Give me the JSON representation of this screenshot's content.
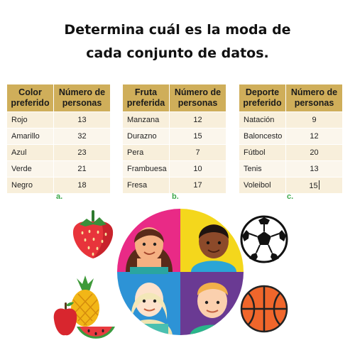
{
  "title": {
    "line1": "Determina cuál es la moda de",
    "line2": "cada conjunto de datos."
  },
  "tables": [
    {
      "letter": "a.",
      "header": [
        "Color preferido",
        "Número de personas"
      ],
      "rows": [
        [
          "Rojo",
          "13"
        ],
        [
          "Amarillo",
          "32"
        ],
        [
          "Azul",
          "23"
        ],
        [
          "Verde",
          "21"
        ],
        [
          "Negro",
          "18"
        ]
      ]
    },
    {
      "letter": "b.",
      "header": [
        "Fruta preferida",
        "Número de personas"
      ],
      "rows": [
        [
          "Manzana",
          "12"
        ],
        [
          "Durazno",
          "15"
        ],
        [
          "Pera",
          "7"
        ],
        [
          "Frambuesa",
          "10"
        ],
        [
          "Fresa",
          "17"
        ]
      ]
    },
    {
      "letter": "c.",
      "header": [
        "Deporte preferido",
        "Número de personas"
      ],
      "rows": [
        [
          "Natación",
          "9"
        ],
        [
          "Baloncesto",
          "12"
        ],
        [
          "Fútbol",
          "20"
        ],
        [
          "Tenis",
          "13"
        ],
        [
          "Voleibol",
          "15"
        ]
      ]
    }
  ],
  "colors": {
    "header_bg": "#cfae5a",
    "row_bg": "#f8efdb",
    "letter": "#3ea94c"
  },
  "icons": [
    "strawberry-icon",
    "fruit-bowl-icon",
    "children-circle-illustration",
    "soccer-ball-icon",
    "basketball-icon"
  ]
}
